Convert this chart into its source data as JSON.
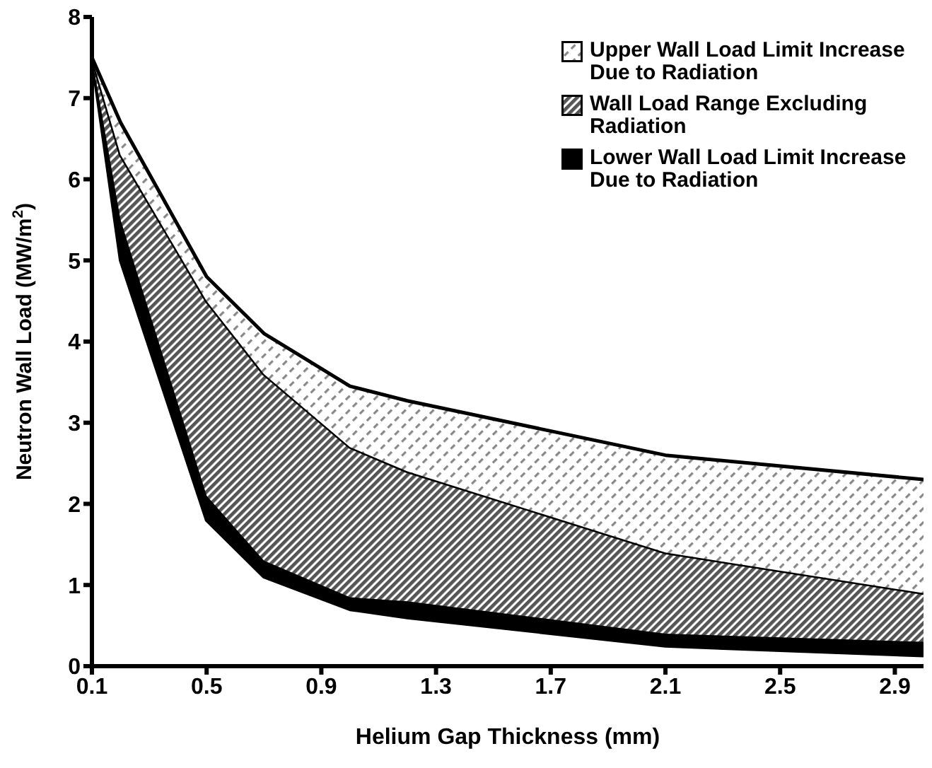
{
  "chart_data": {
    "type": "area",
    "stacked": true,
    "xlabel": "Helium Gap Thickness (mm)",
    "ylabel": "Neutron Wall Load (MW/m$^{2}$)",
    "x": [
      0.1,
      0.2,
      0.5,
      0.7,
      1.0,
      1.2,
      2.1,
      3.0
    ],
    "series": [
      {
        "color": "#ffffff",
        "values": [
          7.5,
          5.0,
          1.8,
          1.1,
          0.7,
          0.6,
          0.25,
          0.13
        ]
      },
      {
        "name": "Lower Wall Load Limit Increase Due to Radiation",
        "color": "#000000",
        "values": [
          0,
          0.5,
          0.3,
          0.2,
          0.15,
          0.2,
          0.15,
          0.17
        ]
      },
      {
        "name": "Wall Load Range Excluding Radiation",
        "color": "#555555",
        "values": [
          0,
          0.8,
          2.4,
          2.3,
          1.85,
          1.6,
          1.0,
          0.6
        ]
      },
      {
        "name": "Upper Wall Load Limit Increase Due to Radiation",
        "color": "#888888",
        "values": [
          0,
          0.4,
          0.3,
          0.5,
          0.75,
          0.87,
          1.2,
          1.4
        ]
      }
    ],
    "xlim": [
      0.1,
      3.0
    ],
    "xticks": [
      0.1,
      0.5,
      0.9,
      1.3,
      1.7,
      2.1,
      2.5,
      2.9
    ],
    "ylim": [
      0,
      8
    ],
    "yticks": [
      0,
      1,
      2,
      3,
      4,
      5,
      6,
      7,
      8
    ],
    "grid": false,
    "legend": "top right"
  }
}
